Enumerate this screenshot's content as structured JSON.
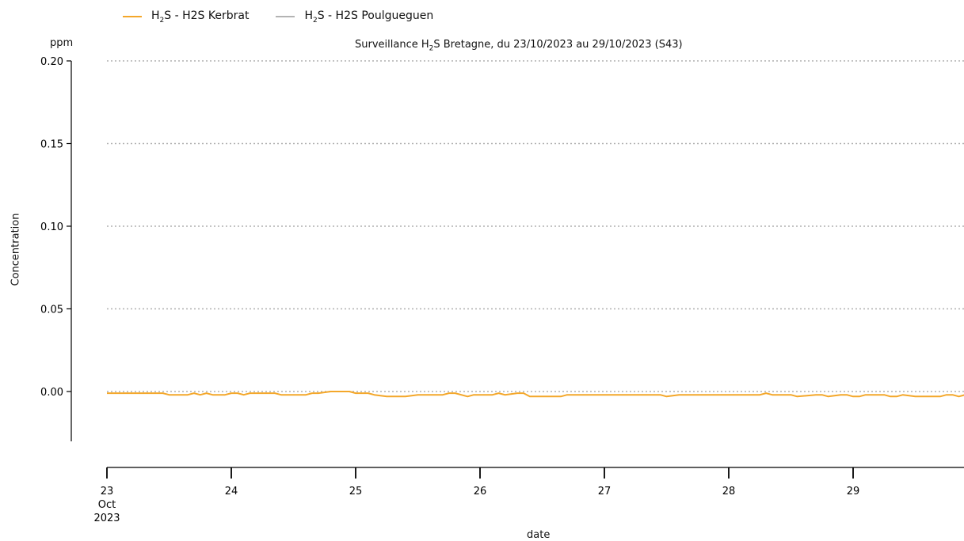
{
  "legend": {
    "items": [
      {
        "formula_main": "H",
        "formula_sub": "2",
        "formula_end": "S",
        "label": " - H2S Kerbrat",
        "color": "#f4a72a"
      },
      {
        "formula_main": "H",
        "formula_sub": "2",
        "formula_end": "S",
        "label": " - H2S Poulgueguen",
        "color": "#b3b3b3"
      }
    ]
  },
  "chart_data": {
    "type": "line",
    "title_prefix": "Surveillance H",
    "title_sub": "2",
    "title_suffix": "S Bretagne, du 23/10/2023 au 29/10/2023 (S43)",
    "unit": "ppm",
    "ylabel": "Concentration",
    "xlabel": "date",
    "ylim": [
      -0.03,
      0.2
    ],
    "yticks": [
      0.0,
      0.05,
      0.1,
      0.15,
      0.2
    ],
    "ytick_labels": [
      "0.00",
      "0.05",
      "0.10",
      "0.15",
      "0.20"
    ],
    "xlim": [
      23,
      29.9
    ],
    "xticks": [
      23,
      24,
      25,
      26,
      27,
      28,
      29
    ],
    "xtick_labels": [
      "23",
      "24",
      "25",
      "26",
      "27",
      "28",
      "29"
    ],
    "xtick_first_extra": [
      "Oct",
      "2023"
    ],
    "grid": "horizontal dotted",
    "legend_position": "top-left",
    "series": [
      {
        "name": "H2S - H2S Kerbrat",
        "color": "#f4a72a",
        "x": [
          23.0,
          23.2,
          23.45,
          23.5,
          23.65,
          23.7,
          23.75,
          23.8,
          23.85,
          23.95,
          24.0,
          24.05,
          24.1,
          24.15,
          24.35,
          24.4,
          24.6,
          24.65,
          24.7,
          24.8,
          24.95,
          25.0,
          25.1,
          25.15,
          25.25,
          25.4,
          25.5,
          25.6,
          25.7,
          25.75,
          25.8,
          25.9,
          25.95,
          26.0,
          26.1,
          26.15,
          26.2,
          26.3,
          26.35,
          26.4,
          26.5,
          26.65,
          26.7,
          26.9,
          27.1,
          27.3,
          27.45,
          27.5,
          27.6,
          27.7,
          27.9,
          28.1,
          28.25,
          28.3,
          28.35,
          28.5,
          28.55,
          28.7,
          28.75,
          28.8,
          28.9,
          28.95,
          29.0,
          29.05,
          29.1,
          29.25,
          29.3,
          29.35,
          29.4,
          29.5,
          29.65,
          29.7,
          29.75,
          29.8,
          29.85,
          29.9
        ],
        "y": [
          -0.001,
          -0.001,
          -0.001,
          -0.002,
          -0.002,
          -0.001,
          -0.002,
          -0.001,
          -0.002,
          -0.002,
          -0.001,
          -0.001,
          -0.002,
          -0.001,
          -0.001,
          -0.002,
          -0.002,
          -0.001,
          -0.001,
          0.0,
          0.0,
          -0.001,
          -0.001,
          -0.002,
          -0.003,
          -0.003,
          -0.002,
          -0.002,
          -0.002,
          -0.001,
          -0.001,
          -0.003,
          -0.002,
          -0.002,
          -0.002,
          -0.001,
          -0.002,
          -0.001,
          -0.001,
          -0.003,
          -0.003,
          -0.003,
          -0.002,
          -0.002,
          -0.002,
          -0.002,
          -0.002,
          -0.003,
          -0.002,
          -0.002,
          -0.002,
          -0.002,
          -0.002,
          -0.001,
          -0.002,
          -0.002,
          -0.003,
          -0.002,
          -0.002,
          -0.003,
          -0.002,
          -0.002,
          -0.003,
          -0.003,
          -0.002,
          -0.002,
          -0.003,
          -0.003,
          -0.002,
          -0.003,
          -0.003,
          -0.003,
          -0.002,
          -0.002,
          -0.003,
          -0.002
        ]
      },
      {
        "name": "H2S - H2S Poulgueguen",
        "color": "#b3b3b3",
        "x": [],
        "y": []
      }
    ]
  }
}
